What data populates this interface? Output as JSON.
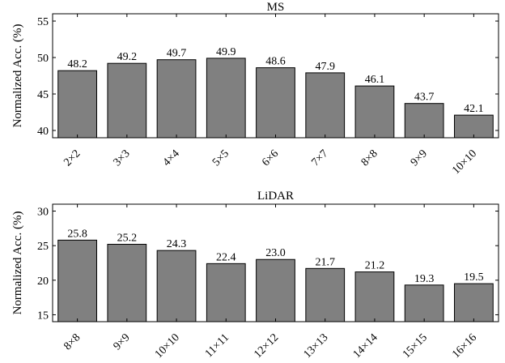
{
  "chart_data": [
    {
      "type": "bar",
      "title": "MS",
      "xlabel": "",
      "ylabel": "Normalized Acc. (%)",
      "ylim": [
        39,
        56
      ],
      "yticks": [
        40,
        45,
        50,
        55
      ],
      "grid": false,
      "bar_color": "#808080",
      "categories": [
        "2×2",
        "3×3",
        "4×4",
        "5×5",
        "6×6",
        "7×7",
        "8×8",
        "9×9",
        "10×10"
      ],
      "values": [
        48.2,
        49.2,
        49.7,
        49.9,
        48.6,
        47.9,
        46.1,
        43.7,
        42.1
      ],
      "value_labels": [
        "48.2",
        "49.2",
        "49.7",
        "49.9",
        "48.6",
        "47.9",
        "46.1",
        "43.7",
        "42.1"
      ]
    },
    {
      "type": "bar",
      "title": "LiDAR",
      "xlabel": "",
      "ylabel": "Normalized Acc. (%)",
      "ylim": [
        14,
        31
      ],
      "yticks": [
        15,
        20,
        25,
        30
      ],
      "grid": false,
      "bar_color": "#808080",
      "categories": [
        "8×8",
        "9×9",
        "10×10",
        "11×11",
        "12×12",
        "13×13",
        "14×14",
        "15×15",
        "16×16"
      ],
      "values": [
        25.8,
        25.2,
        24.3,
        22.4,
        23.0,
        21.7,
        21.2,
        19.3,
        19.5
      ],
      "value_labels": [
        "25.8",
        "25.2",
        "24.3",
        "22.4",
        "23.0",
        "21.7",
        "21.2",
        "19.3",
        "19.5"
      ]
    }
  ]
}
